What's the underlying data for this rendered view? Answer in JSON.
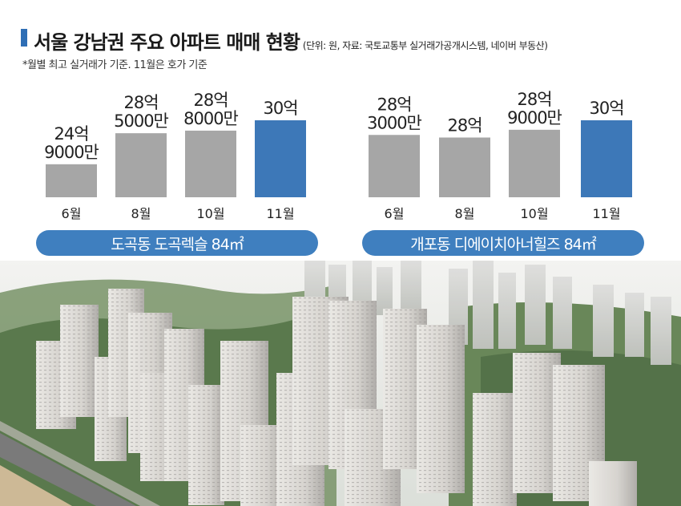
{
  "header": {
    "title": "서울 강남권 주요 아파트 매매 현황",
    "source": "(단위: 원, 자료: 국토교통부 실거래가공개시스템, 네이버 부동산)",
    "note": "*월별 최고 실거래가 기준. 11월은 호가 기준"
  },
  "chart_data": [
    {
      "type": "bar",
      "title": "도곡동 도곡렉슬 84㎡",
      "categories": [
        "6월",
        "8월",
        "10월",
        "11월"
      ],
      "values": [
        2490000000,
        2850000000,
        2880000000,
        3000000000
      ],
      "data_labels": [
        [
          "24억",
          "9000만"
        ],
        [
          "28억",
          "5000만"
        ],
        [
          "28억",
          "8000만"
        ],
        [
          "30억"
        ]
      ],
      "highlight_index": 3,
      "colors": {
        "bar": "#a6a6a6",
        "highlight": "#3d78b8"
      }
    },
    {
      "type": "bar",
      "title": "개포동 디에이치아너힐즈 84㎡",
      "categories": [
        "6월",
        "8월",
        "10월",
        "11월"
      ],
      "values": [
        2830000000,
        2800000000,
        2890000000,
        3000000000
      ],
      "data_labels": [
        [
          "28억",
          "3000만"
        ],
        [
          "28억"
        ],
        [
          "28억",
          "9000만"
        ],
        [
          "30억"
        ]
      ],
      "highlight_index": 3,
      "colors": {
        "bar": "#a6a6a6",
        "highlight": "#3d78b8"
      }
    }
  ],
  "photo": {
    "description_icon": "apartment-complex-aerial-photo"
  }
}
